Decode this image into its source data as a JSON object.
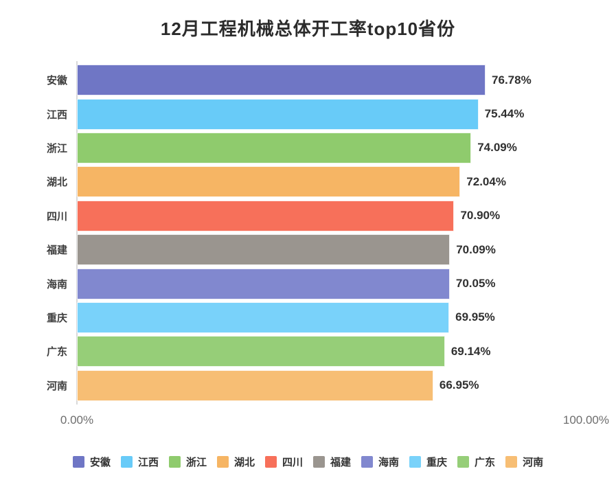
{
  "title": "12月工程机械总体开工率top10省份",
  "chart_data": {
    "type": "bar",
    "orientation": "horizontal",
    "title": "12月工程机械总体开工率top10省份",
    "categories": [
      "安徽",
      "江西",
      "浙江",
      "湖北",
      "四川",
      "福建",
      "海南",
      "重庆",
      "广东",
      "河南"
    ],
    "values": [
      76.78,
      75.44,
      74.09,
      72.04,
      70.9,
      70.09,
      70.05,
      69.95,
      69.14,
      66.95
    ],
    "value_labels": [
      "76.78%",
      "75.44%",
      "74.09%",
      "72.04%",
      "70.90%",
      "70.09%",
      "70.05%",
      "69.95%",
      "69.14%",
      "66.95%"
    ],
    "colors": [
      "#6F76C5",
      "#68CBF8",
      "#8FCB6D",
      "#F6B564",
      "#F7705A",
      "#9A958F",
      "#8188CF",
      "#79D2FA",
      "#96CE78",
      "#F7BE74"
    ],
    "xlim": [
      0,
      100
    ],
    "x_tick_labels": [
      "0.00%",
      "100.00%"
    ],
    "grid": false,
    "legend_position": "bottom",
    "legend": [
      "安徽",
      "江西",
      "浙江",
      "湖北",
      "四川",
      "福建",
      "海南",
      "重庆",
      "广东",
      "河南"
    ]
  },
  "axis": {
    "min_label": "0.00%",
    "max_label": "100.00%"
  },
  "style": {
    "axis_line_color": "#d9d9d9",
    "value_label_color": "#303030"
  }
}
